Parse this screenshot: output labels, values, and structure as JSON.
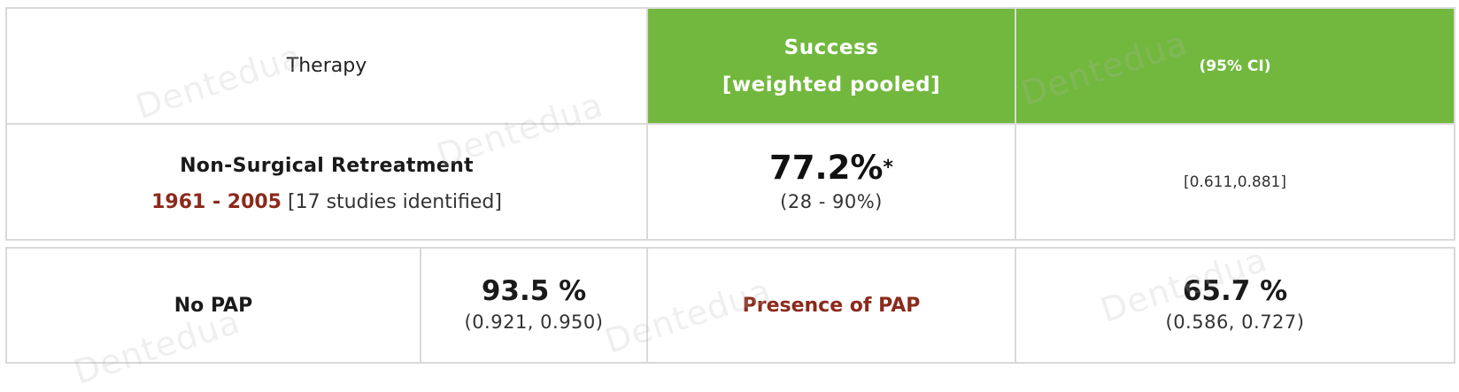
{
  "header": {
    "therapy": "Therapy",
    "success_line1": "Success",
    "success_line2": "[weighted pooled]",
    "ci": "(95% CI)"
  },
  "row": {
    "therapy_name": "Non-Surgical Retreatment",
    "years": "1961 - 2005",
    "studies": "[17 studies identified]",
    "success_value": "77.2%",
    "success_marker": "*",
    "success_range": "(28 - 90%)",
    "ci": "[0.611,0.881]"
  },
  "pap": {
    "no_pap_label": "No PAP",
    "no_pap_value": "93.5 %",
    "no_pap_ci": "(0.921, 0.950)",
    "presence_label": "Presence of PAP",
    "presence_value": "65.7 %",
    "presence_ci": "(0.586, 0.727)"
  },
  "watermark": "Dentedua",
  "colors": {
    "header_green": "#72b83e",
    "accent_red": "#8b2a1c"
  }
}
